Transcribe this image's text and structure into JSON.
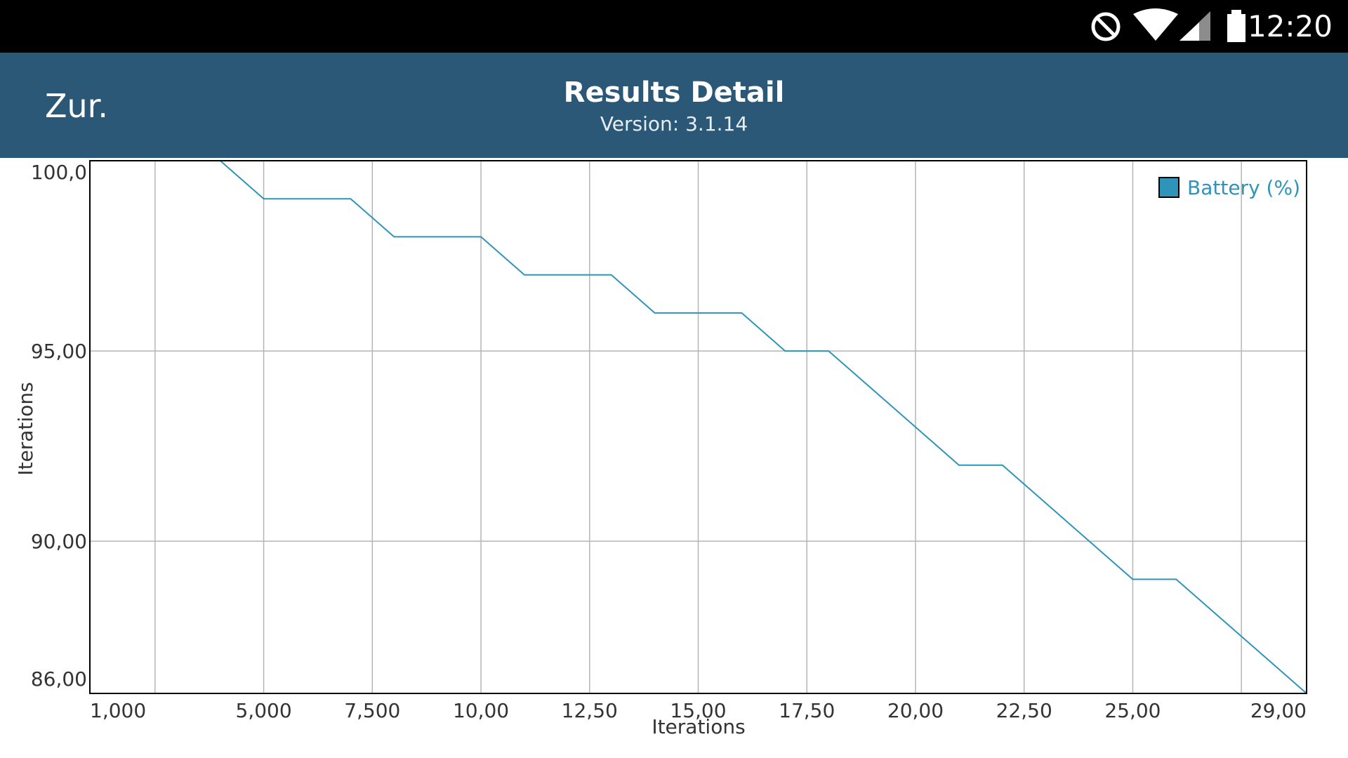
{
  "status_bar": {
    "time": "12:20",
    "icons": [
      "do-not-disturb-icon",
      "wifi-icon",
      "cellular-signal-icon",
      "battery-icon"
    ]
  },
  "app_bar": {
    "back_label": "Zur.",
    "title": "Results Detail",
    "subtitle": "Version: 3.1.14",
    "background": "#2c5877"
  },
  "chart_data": {
    "type": "line",
    "title": "",
    "xlabel": "Iterations",
    "ylabel": "Iterations",
    "xlim": [
      1000,
      29000
    ],
    "ylim": [
      86,
      100
    ],
    "x_ticks": [
      {
        "value": 1000,
        "label": "1,000"
      },
      {
        "value": 5000,
        "label": "5,000"
      },
      {
        "value": 7500,
        "label": "7,500"
      },
      {
        "value": 10000,
        "label": "10,00"
      },
      {
        "value": 12500,
        "label": "12,50"
      },
      {
        "value": 15000,
        "label": "15,00"
      },
      {
        "value": 17500,
        "label": "17,50"
      },
      {
        "value": 20000,
        "label": "20,00"
      },
      {
        "value": 22500,
        "label": "22,50"
      },
      {
        "value": 25000,
        "label": "25,00"
      },
      {
        "value": 29000,
        "label": "29,00"
      }
    ],
    "x_gridlines": [
      2500,
      5000,
      7500,
      10000,
      12500,
      15000,
      17500,
      20000,
      22500,
      25000,
      27500
    ],
    "y_ticks": [
      {
        "value": 100,
        "label": "100,0"
      },
      {
        "value": 95,
        "label": "95,00"
      },
      {
        "value": 90,
        "label": "90,00"
      },
      {
        "value": 86,
        "label": "86,00"
      }
    ],
    "y_gridlines": [
      95,
      90
    ],
    "grid": true,
    "legend_position": "top-right",
    "series": [
      {
        "name": "Battery (%)",
        "color": "#2e94b9",
        "x": [
          1000,
          2000,
          3000,
          4000,
          5000,
          6000,
          7000,
          8000,
          9000,
          10000,
          11000,
          12000,
          13000,
          14000,
          15000,
          16000,
          17000,
          18000,
          19000,
          20000,
          21000,
          22000,
          23000,
          24000,
          25000,
          26000,
          27000,
          28000,
          29000
        ],
        "y": [
          100,
          100,
          100,
          100,
          99,
          99,
          99,
          98,
          98,
          98,
          97,
          97,
          97,
          96,
          96,
          96,
          95,
          95,
          94,
          93,
          92,
          92,
          91,
          90,
          89,
          89,
          88,
          87,
          86
        ]
      }
    ]
  }
}
